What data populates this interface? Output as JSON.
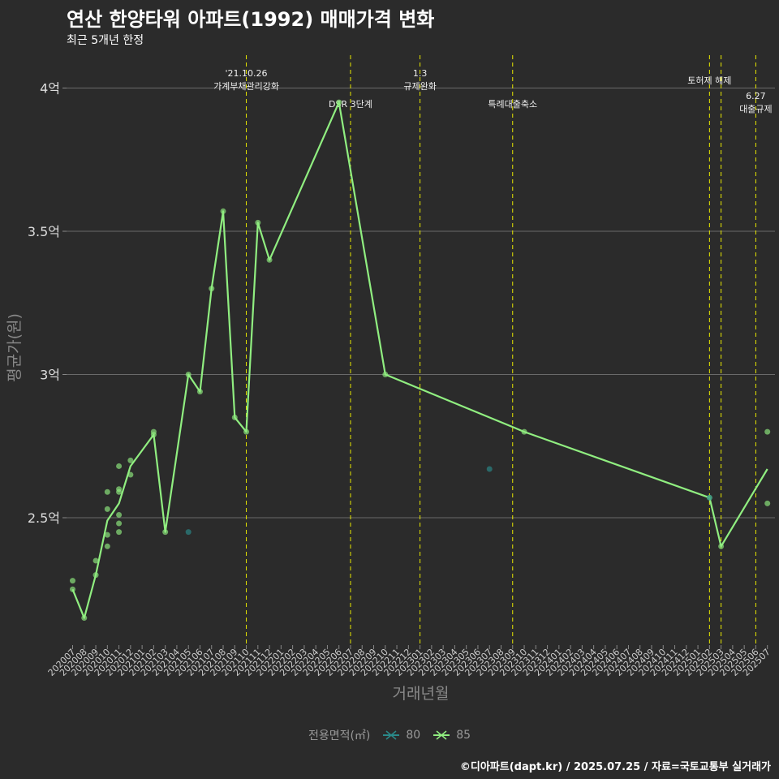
{
  "title": "연산 한양타워 아파트(1992) 매매가격 변화",
  "subtitle": "최근 5개년 한정",
  "caption": "©디아파트(dapt.kr) / 2025.07.25 / 자료=국토교통부 실거래가",
  "legend": {
    "title": "전용면적(㎡)",
    "items": [
      {
        "label": "80",
        "color": "#2a8a8a"
      },
      {
        "label": "85",
        "color": "#90ee80"
      }
    ]
  },
  "chart_data": {
    "type": "line",
    "title": "연산 한양타워 아파트(1992) 매매가격 변화",
    "xlabel": "거래년월",
    "ylabel": "평균가(원)",
    "ylim": [
      2.1,
      4.1
    ],
    "yticks": [
      {
        "value": 2.5,
        "label": "2.5억"
      },
      {
        "value": 3,
        "label": "3억"
      },
      {
        "value": 3.5,
        "label": "3.5억"
      },
      {
        "value": 4,
        "label": "4억"
      }
    ],
    "categories": [
      "202007",
      "202008",
      "202009",
      "202010",
      "202011",
      "202012",
      "202101",
      "202102",
      "202103",
      "202104",
      "202105",
      "202106",
      "202107",
      "202108",
      "202109",
      "202110",
      "202111",
      "202112",
      "202201",
      "202202",
      "202203",
      "202204",
      "202205",
      "202206",
      "202207",
      "202208",
      "202209",
      "202210",
      "202211",
      "202212",
      "202301",
      "202302",
      "202303",
      "202304",
      "202305",
      "202306",
      "202307",
      "202308",
      "202309",
      "202310",
      "202311",
      "202312",
      "202401",
      "202402",
      "202403",
      "202404",
      "202405",
      "202406",
      "202407",
      "202408",
      "202409",
      "202410",
      "202411",
      "202412",
      "202501",
      "202502",
      "202503",
      "202504",
      "202505",
      "202506",
      "202507"
    ],
    "series": [
      {
        "name": "85",
        "color": "#90ee80",
        "line": [
          [
            "202007",
            2.25
          ],
          [
            "202008",
            2.15
          ],
          [
            "202009",
            2.3
          ],
          [
            "202010",
            2.49
          ],
          [
            "202011",
            2.55
          ],
          [
            "202012",
            2.68
          ],
          [
            "202102",
            2.79
          ],
          [
            "202103",
            2.45
          ],
          [
            "202105",
            3.0
          ],
          [
            "202106",
            2.94
          ],
          [
            "202107",
            3.3
          ],
          [
            "202108",
            3.57
          ],
          [
            "202109",
            2.85
          ],
          [
            "202110",
            2.8
          ],
          [
            "202111",
            3.53
          ],
          [
            "202112",
            3.4
          ],
          [
            "202206",
            3.95
          ],
          [
            "202210",
            3.0
          ],
          [
            "202310",
            2.8
          ],
          [
            "202502",
            2.57
          ],
          [
            "202503",
            2.4
          ],
          [
            "202507",
            2.67
          ]
        ],
        "points": [
          [
            "202007",
            2.28
          ],
          [
            "202007",
            2.25
          ],
          [
            "202008",
            2.15
          ],
          [
            "202009",
            2.35
          ],
          [
            "202009",
            2.3
          ],
          [
            "202010",
            2.59
          ],
          [
            "202010",
            2.53
          ],
          [
            "202010",
            2.44
          ],
          [
            "202010",
            2.4
          ],
          [
            "202011",
            2.68
          ],
          [
            "202011",
            2.6
          ],
          [
            "202011",
            2.59
          ],
          [
            "202011",
            2.51
          ],
          [
            "202011",
            2.48
          ],
          [
            "202011",
            2.45
          ],
          [
            "202012",
            2.7
          ],
          [
            "202012",
            2.65
          ],
          [
            "202102",
            2.8
          ],
          [
            "202102",
            2.79
          ],
          [
            "202103",
            2.45
          ],
          [
            "202105",
            3.0
          ],
          [
            "202106",
            2.94
          ],
          [
            "202107",
            3.3
          ],
          [
            "202108",
            3.57
          ],
          [
            "202109",
            2.85
          ],
          [
            "202110",
            2.8
          ],
          [
            "202111",
            3.53
          ],
          [
            "202112",
            3.4
          ],
          [
            "202206",
            3.95
          ],
          [
            "202210",
            3.0
          ],
          [
            "202310",
            2.8
          ],
          [
            "202502",
            2.57
          ],
          [
            "202503",
            2.4
          ],
          [
            "202507",
            2.8
          ],
          [
            "202507",
            2.55
          ]
        ]
      },
      {
        "name": "80",
        "color": "#2a8a8a",
        "line": [],
        "points": [
          [
            "202105",
            2.45
          ],
          [
            "202307",
            2.67
          ],
          [
            "202502",
            2.57
          ]
        ]
      }
    ],
    "events": [
      {
        "month": "202110",
        "label": "'21.10.26\n가계부채관리강화",
        "label_level": 1
      },
      {
        "month": "202207",
        "label": "DSR 3단계",
        "label_level": 2
      },
      {
        "month": "202301",
        "label": "1.3\n규제완화",
        "label_level": 1
      },
      {
        "month": "202309",
        "label": "특례대출축소",
        "label_level": 2
      },
      {
        "month": "202502",
        "label": "토허제 해제",
        "label_level": 1
      },
      {
        "month": "202503",
        "label": "",
        "label_level": 0
      },
      {
        "month": "202506",
        "label": "6.27\n대출규제",
        "label_level": 3
      }
    ]
  }
}
